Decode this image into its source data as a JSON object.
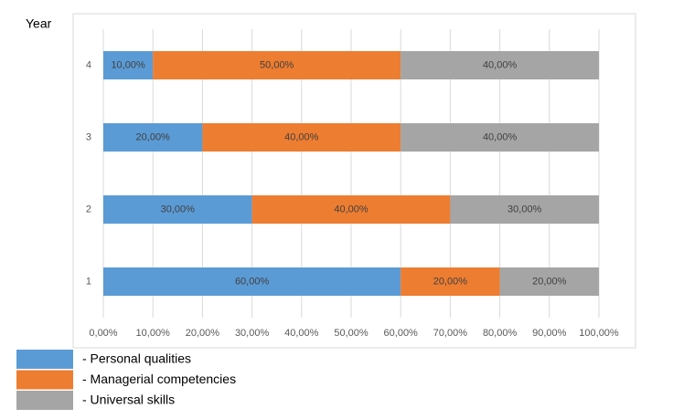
{
  "chart_data": {
    "type": "stacked-bar-horizontal",
    "y_label": "Year",
    "categories": [
      "1",
      "2",
      "3",
      "4"
    ],
    "series": [
      {
        "name": "- Personal qualities",
        "color": "#5b9bd5",
        "values": [
          60,
          30,
          20,
          10
        ],
        "value_labels": [
          "60,00%",
          "30,00%",
          "20,00%",
          "10,00%"
        ]
      },
      {
        "name": "- Managerial competencies",
        "color": "#ed7d31",
        "values": [
          20,
          40,
          40,
          50
        ],
        "value_labels": [
          "20,00%",
          "40,00%",
          "40,00%",
          "50,00%"
        ]
      },
      {
        "name": "- Universal skills",
        "color": "#a5a5a5",
        "values": [
          20,
          30,
          40,
          40
        ],
        "value_labels": [
          "20,00%",
          "30,00%",
          "40,00%",
          "40,00%"
        ]
      }
    ],
    "xlim": [
      0,
      100
    ],
    "xticks": [
      {
        "value": 0,
        "label": "0,00%"
      },
      {
        "value": 10,
        "label": "10,00%"
      },
      {
        "value": 20,
        "label": "20,00%"
      },
      {
        "value": 30,
        "label": "30,00%"
      },
      {
        "value": 40,
        "label": "40,00%"
      },
      {
        "value": 50,
        "label": "50,00%"
      },
      {
        "value": 60,
        "label": "60,00%"
      },
      {
        "value": 70,
        "label": "70,00%"
      },
      {
        "value": 80,
        "label": "80,00%"
      },
      {
        "value": 90,
        "label": "90,00%"
      },
      {
        "value": 100,
        "label": "100,00%"
      }
    ],
    "grid": true
  }
}
